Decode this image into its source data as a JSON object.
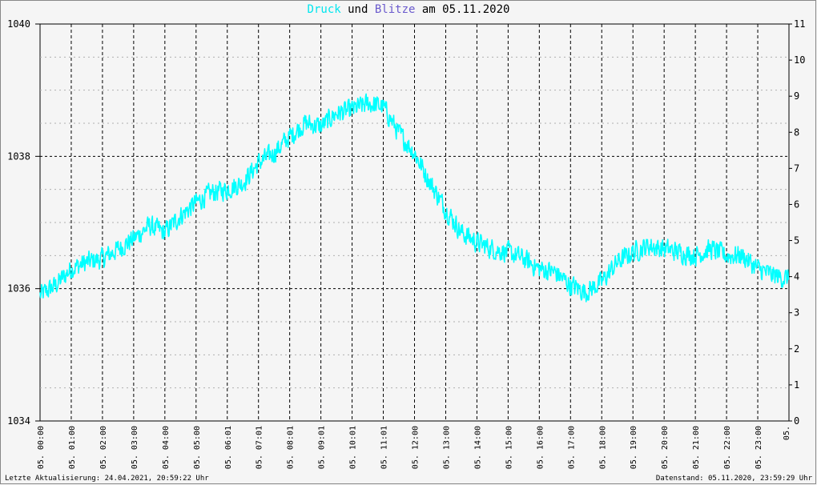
{
  "title": {
    "word1": "Druck",
    "word2": " und ",
    "word3": "Blitze",
    "word4": " am 05.11.2020"
  },
  "colors": {
    "druck": "#00ffff",
    "blitze": "#6a5acd",
    "background": "#f5f5f5",
    "grid_major": "#000000",
    "grid_minor": "#b0b0b0"
  },
  "footer": {
    "left": "Letzte Aktualisierung: 24.04.2021, 20:59:22 Uhr",
    "right": "Datenstand: 05.11.2020, 23:59:29 Uhr"
  },
  "chart_data": {
    "type": "line",
    "title": "Druck und Blitze am 05.11.2020",
    "y_left": {
      "min": 1034,
      "max": 1040,
      "ticks": [
        "1034",
        "1036",
        "1038",
        "1040"
      ],
      "minor_step": 0.5
    },
    "y_right": {
      "min": 0,
      "max": 11,
      "ticks": [
        "0",
        "1",
        "2",
        "3",
        "4",
        "5",
        "6",
        "7",
        "8",
        "9",
        "10",
        "11"
      ]
    },
    "x": {
      "min": 0,
      "max": 24,
      "hour_ticks": [
        "05. 00:00",
        "05. 01:00",
        "05. 02:00",
        "05. 03:00",
        "05. 04:00",
        "05. 05:00",
        "05. 06:01",
        "05. 07:01",
        "05. 08:01",
        "05. 09:01",
        "05. 10:01",
        "05. 11:01",
        "05. 12:00",
        "05. 13:00",
        "05. 14:00",
        "05. 15:00",
        "05. 16:00",
        "05. 17:00",
        "05. 18:00",
        "05. 19:00",
        "05. 20:00",
        "05. 21:00",
        "05. 22:00",
        "05. 23:00"
      ],
      "last_tick_label": "05."
    },
    "series": [
      {
        "name": "Druck",
        "axis": "left",
        "x": [
          0,
          0.5,
          1,
          1.5,
          2,
          2.5,
          3,
          3.5,
          4,
          4.5,
          5,
          5.5,
          6,
          6.5,
          7,
          7.5,
          8,
          8.5,
          9,
          9.5,
          10,
          10.5,
          11,
          11.5,
          12,
          12.5,
          13,
          13.5,
          14,
          14.5,
          15,
          15.5,
          16,
          16.5,
          17,
          17.5,
          18,
          18.5,
          19,
          19.5,
          20,
          20.5,
          21,
          21.5,
          22,
          22.5,
          23,
          23.5,
          24
        ],
        "y": [
          1035.9,
          1036.05,
          1036.3,
          1036.4,
          1036.45,
          1036.6,
          1036.75,
          1036.95,
          1036.85,
          1037.1,
          1037.3,
          1037.45,
          1037.5,
          1037.6,
          1037.9,
          1038.05,
          1038.3,
          1038.5,
          1038.45,
          1038.65,
          1038.7,
          1038.8,
          1038.75,
          1038.35,
          1038.05,
          1037.6,
          1037.2,
          1036.85,
          1036.7,
          1036.6,
          1036.55,
          1036.45,
          1036.3,
          1036.25,
          1036.05,
          1035.95,
          1036.1,
          1036.4,
          1036.55,
          1036.65,
          1036.6,
          1036.55,
          1036.5,
          1036.6,
          1036.5,
          1036.5,
          1036.3,
          1036.2,
          1036.15
        ]
      }
    ]
  }
}
